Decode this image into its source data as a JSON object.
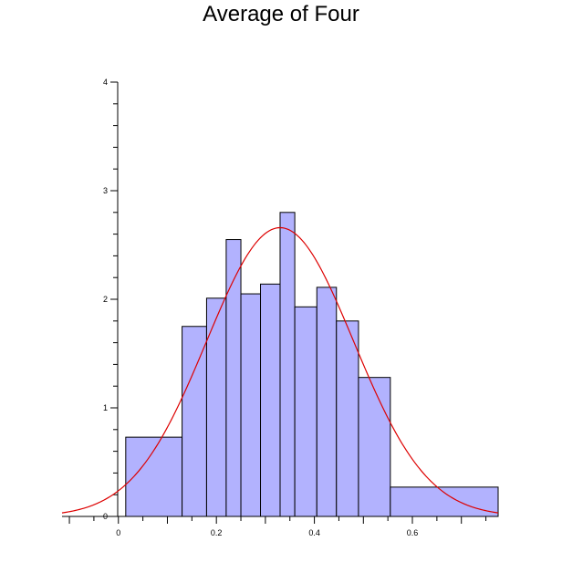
{
  "chart_data": {
    "type": "histogram",
    "title": "Average of Four",
    "xlabel": "",
    "ylabel": "",
    "xlim": [
      -0.115,
      0.775
    ],
    "ylim": [
      0,
      4
    ],
    "x_ticks": [
      0,
      0.2,
      0.4,
      0.6
    ],
    "x_tick_labels": [
      "0",
      "0.2",
      "0.4",
      "0.6"
    ],
    "y_ticks": [
      0,
      1,
      2,
      3,
      4
    ],
    "y_tick_labels": [
      "0",
      "1",
      "2",
      "3",
      "4"
    ],
    "bins": [
      {
        "x0": 0.015,
        "x1": 0.13,
        "value": 0.73
      },
      {
        "x0": 0.13,
        "x1": 0.18,
        "value": 1.75
      },
      {
        "x0": 0.18,
        "x1": 0.22,
        "value": 2.01
      },
      {
        "x0": 0.22,
        "x1": 0.25,
        "value": 2.55
      },
      {
        "x0": 0.25,
        "x1": 0.29,
        "value": 2.05
      },
      {
        "x0": 0.29,
        "x1": 0.33,
        "value": 2.14
      },
      {
        "x0": 0.33,
        "x1": 0.36,
        "value": 2.8
      },
      {
        "x0": 0.36,
        "x1": 0.405,
        "value": 1.93
      },
      {
        "x0": 0.405,
        "x1": 0.445,
        "value": 2.11
      },
      {
        "x0": 0.445,
        "x1": 0.49,
        "value": 1.8
      },
      {
        "x0": 0.49,
        "x1": 0.555,
        "value": 1.28
      },
      {
        "x0": 0.555,
        "x1": 0.775,
        "value": 0.27
      }
    ],
    "fit_curve": {
      "type": "normal",
      "mean": 0.33,
      "sd": 0.15
    },
    "colors": {
      "bar_fill": "#b2b2fe",
      "bar_stroke": "#000000",
      "curve": "#dd0000"
    }
  }
}
